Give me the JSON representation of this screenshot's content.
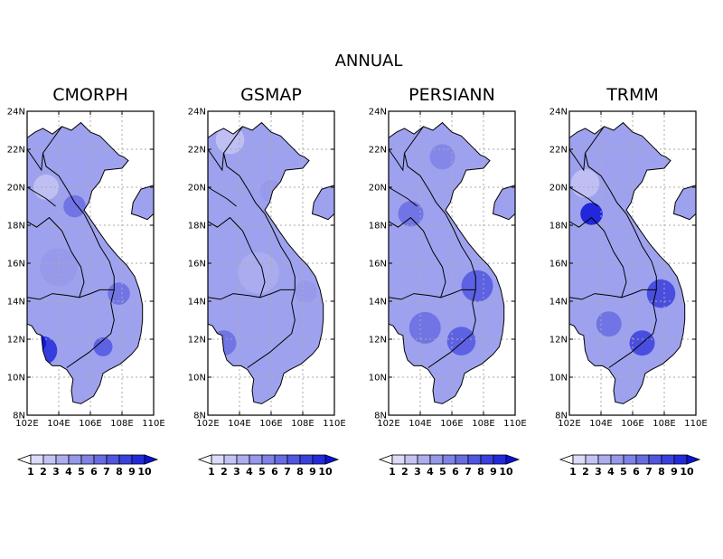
{
  "figure": {
    "title": "ANNUAL"
  },
  "axes": {
    "lat_ticks": [
      "8N",
      "10N",
      "12N",
      "14N",
      "16N",
      "18N",
      "20N",
      "22N",
      "24N"
    ],
    "lon_ticks": [
      "102E",
      "104E",
      "106E",
      "108E",
      "110E"
    ],
    "lat_range": [
      8,
      24
    ],
    "lon_range": [
      102,
      110
    ]
  },
  "panels": [
    {
      "title": "CMORPH"
    },
    {
      "title": "GSMAP"
    },
    {
      "title": "PERSIANN"
    },
    {
      "title": "TRMM"
    }
  ],
  "colorbar": {
    "labels": [
      "1",
      "2",
      "3",
      "4",
      "5",
      "6",
      "7",
      "8",
      "9",
      "10"
    ],
    "colors": [
      "#ffffff",
      "#dcdcfa",
      "#c4c4f4",
      "#adaeee",
      "#9698ea",
      "#7f82e6",
      "#686ce2",
      "#5156e0",
      "#3a40dd",
      "#232adb",
      "#0a12d6"
    ]
  },
  "colors": {
    "ocean": "#ffffff",
    "land_base": "#9ea2ee",
    "coast": "#000000",
    "grid": "#aaaaaa"
  }
}
